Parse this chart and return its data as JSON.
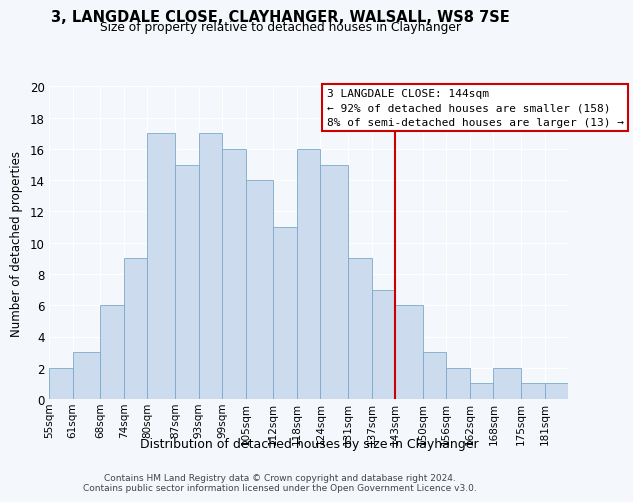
{
  "title1": "3, LANGDALE CLOSE, CLAYHANGER, WALSALL, WS8 7SE",
  "title2": "Size of property relative to detached houses in Clayhanger",
  "xlabel": "Distribution of detached houses by size in Clayhanger",
  "ylabel": "Number of detached properties",
  "bin_labels": [
    "55sqm",
    "61sqm",
    "68sqm",
    "74sqm",
    "80sqm",
    "87sqm",
    "93sqm",
    "99sqm",
    "105sqm",
    "112sqm",
    "118sqm",
    "124sqm",
    "131sqm",
    "137sqm",
    "143sqm",
    "150sqm",
    "156sqm",
    "162sqm",
    "168sqm",
    "175sqm",
    "181sqm"
  ],
  "bin_edges": [
    55,
    61,
    68,
    74,
    80,
    87,
    93,
    99,
    105,
    112,
    118,
    124,
    131,
    137,
    143,
    150,
    156,
    162,
    168,
    175,
    181,
    187
  ],
  "counts": [
    2,
    3,
    6,
    9,
    17,
    15,
    17,
    16,
    14,
    11,
    16,
    15,
    9,
    7,
    6,
    3,
    2,
    1,
    2,
    1,
    1
  ],
  "bar_color": "#ccdcee",
  "bar_edge_color": "#7aaac8",
  "vline_x": 143,
  "vline_color": "#cc0000",
  "annotation_title": "3 LANGDALE CLOSE: 144sqm",
  "annotation_line1": "← 92% of detached houses are smaller (158)",
  "annotation_line2": "8% of semi-detached houses are larger (13) →",
  "annotation_box_facecolor": "#ffffff",
  "annotation_box_edgecolor": "#cc0000",
  "footer1": "Contains HM Land Registry data © Crown copyright and database right 2024.",
  "footer2": "Contains public sector information licensed under the Open Government Licence v3.0.",
  "ylim": [
    0,
    20
  ],
  "yticks": [
    0,
    2,
    4,
    6,
    8,
    10,
    12,
    14,
    16,
    18,
    20
  ],
  "background_color": "#f4f7fb",
  "plot_bg_color": "#f4f7fb",
  "grid_color": "#ffffff"
}
